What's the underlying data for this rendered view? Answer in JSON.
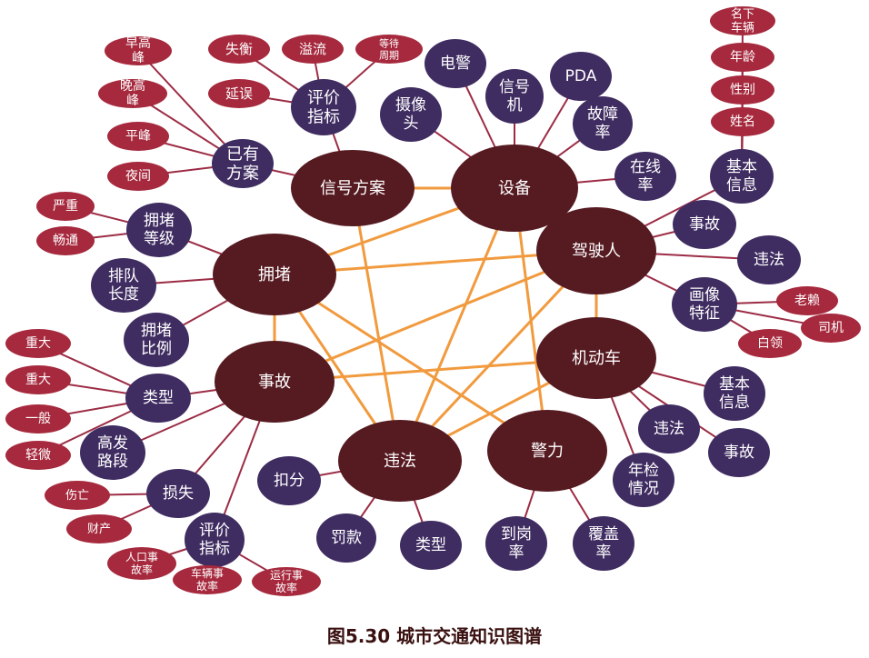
{
  "caption": "图5.30 城市交通知识图谱",
  "colors": {
    "core_fill": "#561a21",
    "attr_fill": "#3f2c61",
    "leaf_fill": "#a6293d",
    "link_stroke": "#9c2c45",
    "cross_stroke": "#f19a3e",
    "text": "#ffffff"
  },
  "core_nodes": [
    "信号方案",
    "设备",
    "拥堵",
    "驾驶人",
    "事故",
    "机动车",
    "违法",
    "警力"
  ],
  "attribute_nodes": [
    "评价指标",
    "已有方案",
    "电警",
    "信号机",
    "PDA",
    "摄像头",
    "故障率",
    "在线率",
    "基本信息",
    "拥堵等级",
    "排队长度",
    "拥堵比例",
    "事故",
    "违法",
    "画像特征",
    "类型",
    "高发路段",
    "损失",
    "评价指标",
    "基本信息",
    "违法",
    "事故",
    "年检情况",
    "扣分",
    "罚款",
    "类型",
    "到岗率",
    "覆盖率"
  ],
  "leaf_nodes": [
    "失衡",
    "溢流",
    "等待周期",
    "延误",
    "早高峰",
    "晚高峰",
    "平峰",
    "夜间",
    "名下车辆",
    "年龄",
    "性别",
    "姓名",
    "严重",
    "畅通",
    "老赖",
    "司机",
    "白领",
    "重大",
    "重大",
    "一般",
    "轻微",
    "伤亡",
    "财产",
    "人口事故率",
    "车辆事故率",
    "运行事故率"
  ]
}
